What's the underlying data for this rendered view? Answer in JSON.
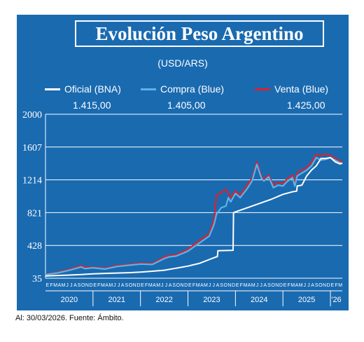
{
  "title": "Evolución Peso Argentino",
  "footer": "Al: 30/03/2026. Fuente: Ámbito.",
  "colors": {
    "background": "#1a6ab0",
    "oficial": "#ffffff",
    "compra": "#5bb3e8",
    "venta": "#d9232e"
  },
  "chart_data": {
    "type": "line",
    "subtitle": "(USD/ARS)",
    "y_ticks": [
      35,
      428,
      821,
      1214,
      1607,
      2000
    ],
    "ylim": [
      35,
      2000
    ],
    "xlim": [
      2020.0,
      2026.25
    ],
    "month_letters": [
      "E",
      "F",
      "M",
      "A",
      "M",
      "J",
      "J",
      "A",
      "S",
      "O",
      "N",
      "D"
    ],
    "years": [
      {
        "label": "2020",
        "start": 2020
      },
      {
        "label": "2021",
        "start": 2021
      },
      {
        "label": "2022",
        "start": 2022
      },
      {
        "label": "2023",
        "start": 2023
      },
      {
        "label": "2024",
        "start": 2024
      },
      {
        "label": "2025",
        "start": 2025
      },
      {
        "label": "'26",
        "start": 2026
      }
    ],
    "series": [
      {
        "name": "Oficial (BNA)",
        "value_label": "1.415,00",
        "color_key": "oficial",
        "x": [
          2020.0,
          2020.25,
          2020.5,
          2020.75,
          2021.0,
          2021.25,
          2021.5,
          2021.75,
          2022.0,
          2022.25,
          2022.5,
          2022.75,
          2023.0,
          2023.25,
          2023.5,
          2023.62,
          2023.63,
          2023.9,
          2023.95,
          2023.96,
          2024.0,
          2024.25,
          2024.5,
          2024.75,
          2025.0,
          2025.2,
          2025.29,
          2025.3,
          2025.4,
          2025.5,
          2025.6,
          2025.7,
          2025.8,
          2025.9,
          2026.0,
          2026.1,
          2026.2,
          2026.25
        ],
        "y": [
          63,
          68,
          73,
          79,
          88,
          93,
          97,
          101,
          108,
          119,
          131,
          155,
          180,
          215,
          270,
          295,
          365,
          368,
          370,
          820,
          830,
          880,
          930,
          980,
          1040,
          1070,
          1080,
          1140,
          1150,
          1260,
          1330,
          1380,
          1470,
          1470,
          1480,
          1430,
          1405,
          1415
        ]
      },
      {
        "name": "Compra (Blue)",
        "value_label": "1.405,00",
        "color_key": "compra",
        "x": [
          2020.0,
          2020.25,
          2020.5,
          2020.75,
          2020.83,
          2021.0,
          2021.25,
          2021.5,
          2021.75,
          2022.0,
          2022.25,
          2022.5,
          2022.6,
          2022.75,
          2023.0,
          2023.25,
          2023.45,
          2023.55,
          2023.6,
          2023.7,
          2023.8,
          2023.85,
          2023.9,
          2024.0,
          2024.1,
          2024.25,
          2024.35,
          2024.45,
          2024.55,
          2024.6,
          2024.7,
          2024.8,
          2024.9,
          2025.0,
          2025.1,
          2025.2,
          2025.25,
          2025.3,
          2025.5,
          2025.6,
          2025.7,
          2025.8,
          2025.9,
          2026.0,
          2026.1,
          2026.25
        ],
        "y": [
          78,
          98,
          130,
          170,
          150,
          160,
          145,
          175,
          190,
          205,
          200,
          270,
          290,
          300,
          360,
          460,
          540,
          680,
          800,
          880,
          900,
          1000,
          950,
          1050,
          1000,
          1110,
          1200,
          1400,
          1230,
          1200,
          1250,
          1120,
          1150,
          1140,
          1200,
          1240,
          1140,
          1260,
          1330,
          1380,
          1480,
          1450,
          1460,
          1480,
          1450,
          1405
        ]
      },
      {
        "name": "Venta (Blue)",
        "value_label": "1.425,00",
        "color_key": "venta",
        "x": [
          2020.0,
          2020.25,
          2020.5,
          2020.75,
          2020.83,
          2021.0,
          2021.25,
          2021.5,
          2021.75,
          2022.0,
          2022.25,
          2022.5,
          2022.6,
          2022.75,
          2023.0,
          2023.25,
          2023.45,
          2023.55,
          2023.6,
          2023.7,
          2023.8,
          2023.85,
          2023.9,
          2024.0,
          2024.1,
          2024.25,
          2024.35,
          2024.45,
          2024.55,
          2024.6,
          2024.7,
          2024.8,
          2024.9,
          2025.0,
          2025.1,
          2025.2,
          2025.25,
          2025.3,
          2025.5,
          2025.6,
          2025.7,
          2025.8,
          2025.9,
          2026.0,
          2026.1,
          2026.25
        ],
        "y": [
          82,
          105,
          140,
          185,
          165,
          168,
          155,
          185,
          200,
          215,
          210,
          290,
          305,
          315,
          380,
          490,
          570,
          740,
          1030,
          1060,
          1100,
          1050,
          1000,
          1080,
          1030,
          1150,
          1230,
          1430,
          1250,
          1220,
          1270,
          1150,
          1180,
          1170,
          1230,
          1270,
          1170,
          1300,
          1360,
          1420,
          1520,
          1500,
          1520,
          1510,
          1470,
          1425
        ]
      }
    ]
  }
}
